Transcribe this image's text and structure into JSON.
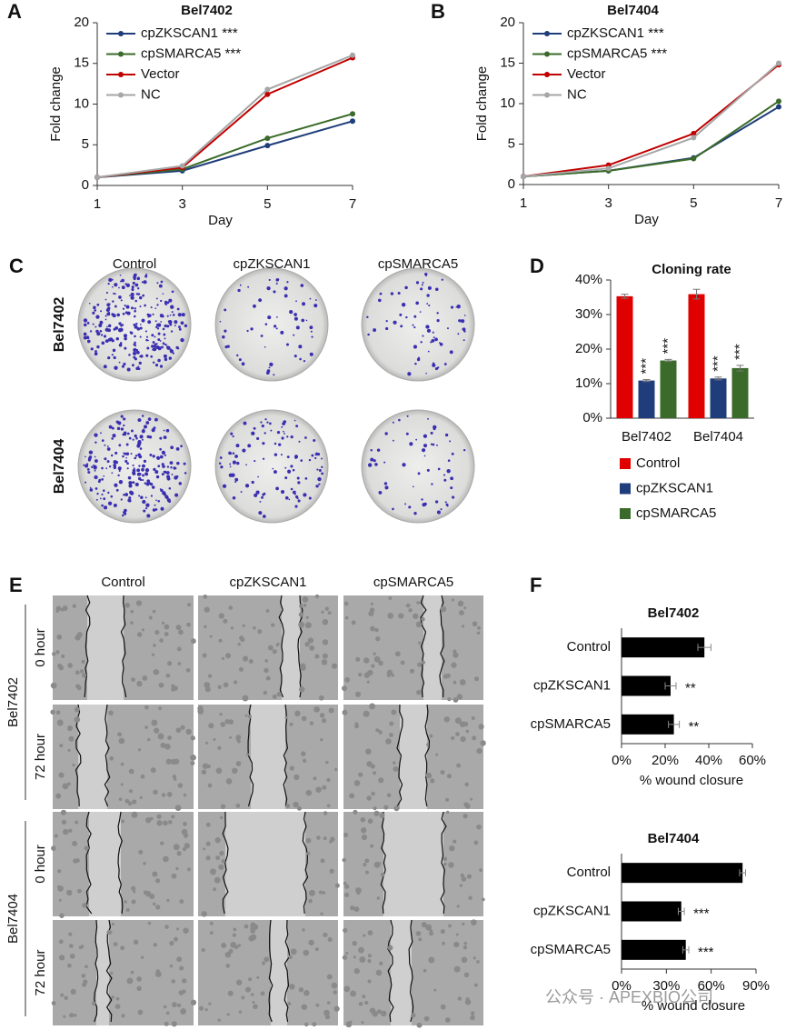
{
  "chart_data": [
    {
      "type": "line",
      "panel": "A",
      "title": "Bel7402",
      "x": [
        1,
        3,
        5,
        7
      ],
      "xlim": [
        1,
        7
      ],
      "xticks": [
        1,
        3,
        5,
        7
      ],
      "ylim": [
        0,
        20
      ],
      "yticks": [
        0,
        5,
        10,
        15,
        20
      ],
      "x_label": "Day",
      "y_label": "Fold change",
      "series": [
        {
          "name": "cpZKSCAN1 ***",
          "color": "#1f3d7a",
          "values": [
            1,
            1.8,
            4.9,
            7.9
          ]
        },
        {
          "name": "cpSMARCA5 ***",
          "color": "#3b6b2a",
          "values": [
            1,
            2.0,
            5.8,
            8.8
          ]
        },
        {
          "name": "Vector",
          "color": "#c00000",
          "values": [
            1,
            2.2,
            11.2,
            15.7
          ]
        },
        {
          "name": "NC",
          "color": "#a6a6a6",
          "values": [
            1,
            2.4,
            11.8,
            16.0
          ]
        }
      ]
    },
    {
      "type": "line",
      "panel": "B",
      "title": "Bel7404",
      "x": [
        1,
        3,
        5,
        7
      ],
      "xlim": [
        1,
        7
      ],
      "xticks": [
        1,
        3,
        5,
        7
      ],
      "ylim": [
        0,
        20
      ],
      "yticks": [
        0,
        5,
        10,
        15,
        20
      ],
      "x_label": "Day",
      "y_label": "Fold change",
      "series": [
        {
          "name": "cpZKSCAN1 ***",
          "color": "#1f3d7a",
          "values": [
            1,
            1.7,
            3.3,
            9.6
          ]
        },
        {
          "name": "cpSMARCA5 ***",
          "color": "#3b6b2a",
          "values": [
            1,
            1.7,
            3.2,
            10.3
          ]
        },
        {
          "name": "Vector",
          "color": "#c00000",
          "values": [
            1,
            2.4,
            6.3,
            14.8
          ]
        },
        {
          "name": "NC",
          "color": "#a6a6a6",
          "values": [
            1,
            2.0,
            5.8,
            15.0
          ]
        }
      ]
    },
    {
      "type": "bar",
      "panel": "D",
      "title": "Cloning rate",
      "categories": [
        "Bel7402",
        "Bel7404"
      ],
      "ylim": [
        0,
        40
      ],
      "yticks": [
        {
          "value": 0,
          "label": "0%"
        },
        {
          "value": 10,
          "label": "10%"
        },
        {
          "value": 20,
          "label": "20%"
        },
        {
          "value": 30,
          "label": "30%"
        },
        {
          "value": 40,
          "label": "40%"
        }
      ],
      "series": [
        {
          "name": "Control",
          "color": "#e00000",
          "values": [
            35.3,
            35.9
          ],
          "errors": [
            0.6,
            1.4
          ]
        },
        {
          "name": "cpZKSCAN1",
          "color": "#1f3d7a",
          "values": [
            10.9,
            11.5
          ],
          "errors": [
            0.3,
            0.4
          ],
          "significance": [
            "***",
            "***"
          ]
        },
        {
          "name": "cpSMARCA5",
          "color": "#3b6b2a",
          "values": [
            16.7,
            14.5
          ],
          "errors": [
            0.3,
            0.8
          ],
          "significance": [
            "***",
            "***"
          ]
        }
      ]
    },
    {
      "type": "hbar",
      "panel": "F",
      "title": "Bel7402",
      "categories": [
        "Control",
        "cpZKSCAN1",
        "cpSMARCA5"
      ],
      "values": [
        38,
        22.5,
        24
      ],
      "errors": [
        3,
        2.5,
        2.5
      ],
      "significance": [
        null,
        "**",
        "**"
      ],
      "color": "#000000",
      "xlim": [
        0,
        60
      ],
      "xticks": [
        {
          "value": 0,
          "label": "0%"
        },
        {
          "value": 20,
          "label": "20%"
        },
        {
          "value": 40,
          "label": "40%"
        },
        {
          "value": 60,
          "label": "60%"
        }
      ],
      "x_label": "% wound closure"
    },
    {
      "type": "hbar",
      "title": "Bel7404",
      "categories": [
        "Control",
        "cpZKSCAN1",
        "cpSMARCA5"
      ],
      "values": [
        81,
        40,
        43
      ],
      "errors": [
        2,
        2,
        2
      ],
      "significance": [
        null,
        "***",
        "***"
      ],
      "color": "#000000",
      "xlim": [
        0,
        90
      ],
      "xticks": [
        {
          "value": 0,
          "label": "0%"
        },
        {
          "value": 30,
          "label": "30%"
        },
        {
          "value": 60,
          "label": "60%"
        },
        {
          "value": 90,
          "label": "90%"
        }
      ],
      "x_label": "% wound closure"
    }
  ],
  "panel_c": {
    "label": "C",
    "columns": [
      "Control",
      "cpZKSCAN1",
      "cpSMARCA5"
    ],
    "rows": [
      "Bel7402",
      "Bel7404"
    ]
  },
  "panel_e": {
    "label": "E",
    "columns": [
      "Control",
      "cpZKSCAN1",
      "cpSMARCA5"
    ],
    "rows": [
      "Bel7402",
      "Bel7404"
    ],
    "timepoints": [
      "0 hour",
      "72 hour",
      "0 hour",
      "72 hour"
    ]
  },
  "watermark": "公众号 · APEXBIO公司"
}
